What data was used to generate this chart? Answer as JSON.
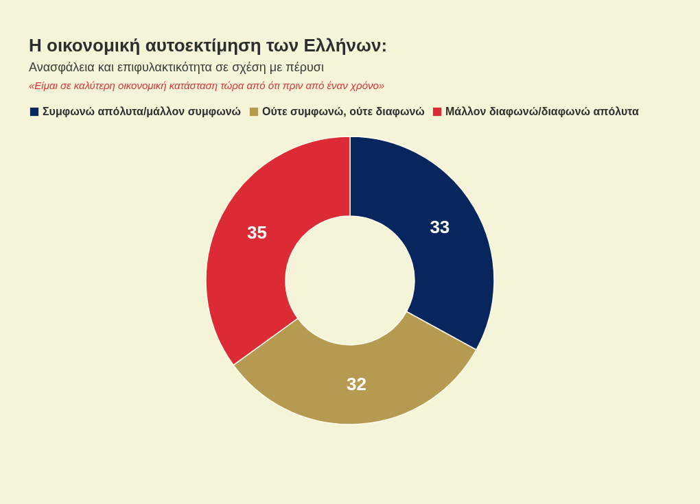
{
  "chart_data": {
    "type": "donut",
    "title": "Η οικονομική αυτοεκτίμηση των Ελλήνων:",
    "subtitle": "Ανασφάλεια και επιφυλακτικότητα σε σχέση με πέρυσι",
    "annotations": [
      "«Είμαι σε καλύτερη οικονομική κατάσταση τώρα από ότι πριν από έναν χρόνο»"
    ],
    "categories": [
      "Συμφωνώ απόλυτα/μάλλον συμφωνώ",
      "Ούτε συμφωνώ, ούτε διαφωνώ",
      "Μάλλον διαφωνώ/διαφωνώ απόλυτα"
    ],
    "values": [
      33,
      32,
      35
    ],
    "colors": [
      "#08265e",
      "#b59a4f",
      "#dd2b35"
    ],
    "legend": "top left",
    "data_labels": true
  }
}
